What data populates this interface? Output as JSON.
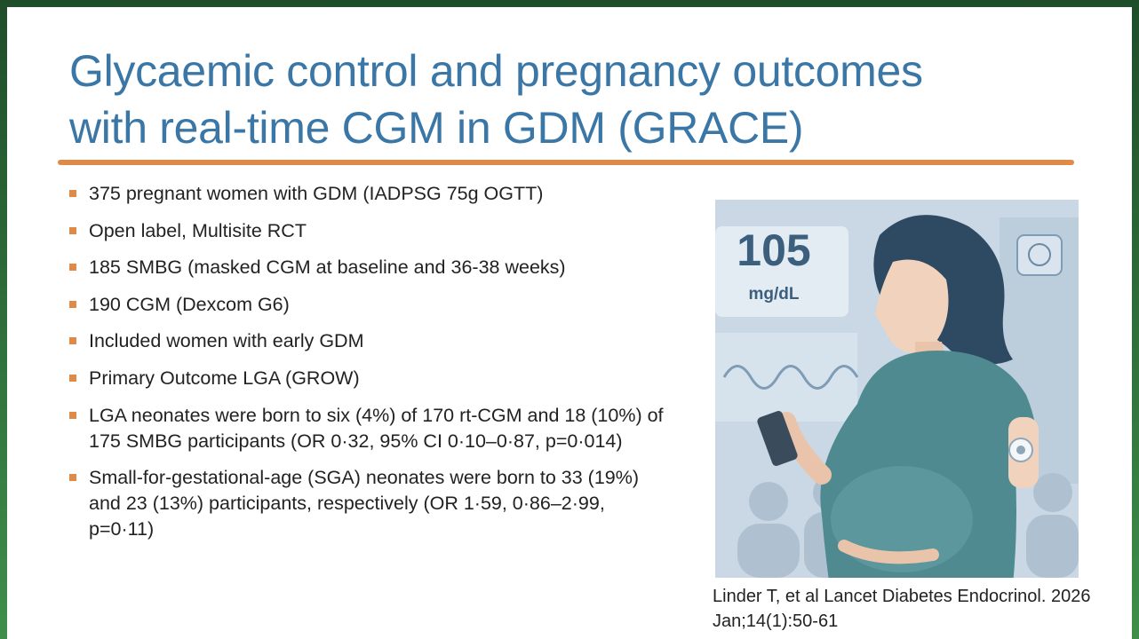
{
  "slide": {
    "title": [
      "Glycaemic control and pregnancy outcomes",
      "with real-time CGM in GDM (GRACE)"
    ],
    "bullets": [
      "375 pregnant women with GDM (IADPSG 75g OGTT)",
      "Open label, Multisite RCT",
      "185 SMBG (masked CGM at baseline and 36-38 weeks)",
      "190 CGM (Dexcom G6)",
      "Included women with early GDM",
      "Primary Outcome LGA (GROW)",
      "LGA neonates were born to six (4%) of 170 rt-CGM and 18 (10%) of 175 SMBG participants (OR 0·32, 95% CI 0·10–0·87, p=0·014)",
      "Small-for-gestational-age (SGA) neonates were born to 33 (19%) and 23 (13%) participants, respectively (OR 1·59, 0·86–2·99, p=0·11)"
    ],
    "image": {
      "reading": "105",
      "unit": "mg/dL"
    },
    "citation": [
      "Linder T, et al Lancet Diabetes Endocrinol. 2026",
      "Jan;14(1):50-61"
    ]
  }
}
